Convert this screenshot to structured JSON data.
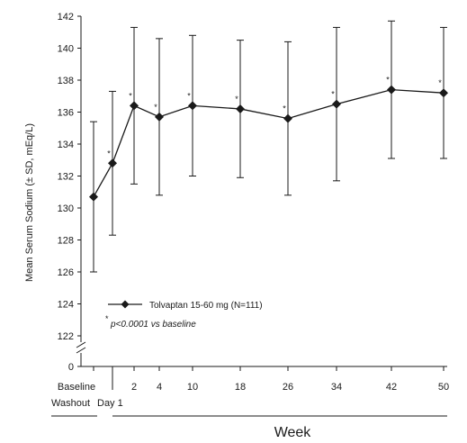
{
  "chart_data": {
    "type": "line",
    "ylabel": "Mean Serum Sodium (± SD, mEq/L)",
    "xlabel": "Week",
    "ylim": [
      122,
      142
    ],
    "y_ticks": [
      "142",
      "140",
      "138",
      "136",
      "134",
      "132",
      "130",
      "128",
      "126",
      "124",
      "122"
    ],
    "y_zero_label": "0",
    "y_axis_break": true,
    "x_tick_labels": [
      "Baseline",
      "Day 1",
      "2",
      "4",
      "10",
      "18",
      "26",
      "34",
      "42",
      "50"
    ],
    "x_groups": [
      "Washout",
      "Week"
    ],
    "series": [
      {
        "name": "Tolvaptan 15-60 mg (N=111)",
        "marker": "diamond",
        "x": [
          "Baseline",
          "Day 1",
          "2",
          "4",
          "10",
          "18",
          "26",
          "34",
          "42",
          "50"
        ],
        "values": [
          130.7,
          132.8,
          136.4,
          135.7,
          136.4,
          136.2,
          135.6,
          136.5,
          137.4,
          137.2
        ],
        "sd": [
          4.7,
          4.5,
          4.9,
          4.9,
          4.4,
          4.3,
          4.8,
          4.8,
          4.3,
          4.1
        ],
        "significant": [
          false,
          true,
          true,
          true,
          true,
          true,
          true,
          true,
          true,
          true
        ]
      }
    ],
    "significance_marker": "*",
    "footnote": "p<0.0001 vs baseline",
    "legend": "lower-left",
    "grid": false
  },
  "colors": {
    "ink": "#1a1a1a",
    "background": "#ffffff"
  }
}
